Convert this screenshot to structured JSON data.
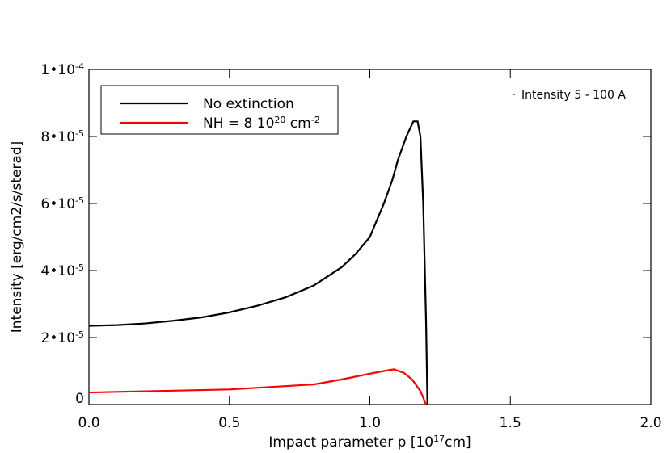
{
  "chart_data": {
    "type": "line",
    "xlabel": [
      {
        "text": "Impact parameter p [10"
      },
      {
        "sup": "17"
      },
      {
        "text": "cm]"
      }
    ],
    "ylabel": "Intensity [erg/cm2/s/sterad]",
    "annotation": "Intensity 5 - 100 A",
    "xlim": [
      0,
      2
    ],
    "ylim": [
      0,
      0.0001
    ],
    "xticks": [
      {
        "value": 0,
        "label": "0.0"
      },
      0.5,
      {
        "value": 1,
        "label": "1.0"
      },
      1.5,
      {
        "value": 2,
        "label": "2.0"
      }
    ],
    "yticks": [
      0,
      {
        "value": 2e-05,
        "label": [
          {
            "text": "2•10"
          },
          {
            "sup": "-5"
          }
        ]
      },
      {
        "value": 4e-05,
        "label": [
          {
            "text": "4•10"
          },
          {
            "sup": "-5"
          }
        ]
      },
      {
        "value": 6e-05,
        "label": [
          {
            "text": "6•10"
          },
          {
            "sup": "-5"
          }
        ]
      },
      {
        "value": 8e-05,
        "label": [
          {
            "text": "8•10"
          },
          {
            "sup": "-5"
          }
        ]
      },
      {
        "value": 0.0001,
        "label": [
          {
            "text": "1•10"
          },
          {
            "sup": "-4"
          }
        ]
      }
    ],
    "legend": "upper left",
    "series": [
      {
        "name": "No extinction",
        "color": "#000000",
        "x": [
          0,
          0.1,
          0.2,
          0.3,
          0.4,
          0.5,
          0.6,
          0.7,
          0.8,
          0.9,
          0.95,
          1.0,
          1.05,
          1.08,
          1.1,
          1.13,
          1.155,
          1.17,
          1.18,
          1.19,
          1.2,
          1.205
        ],
        "values": [
          2.35e-05,
          2.37e-05,
          2.42e-05,
          2.5e-05,
          2.6e-05,
          2.75e-05,
          2.95e-05,
          3.2e-05,
          3.55e-05,
          4.1e-05,
          4.5e-05,
          5e-05,
          6e-05,
          6.7e-05,
          7.3e-05,
          8e-05,
          8.45e-05,
          8.45e-05,
          8e-05,
          6e-05,
          2.5e-05,
          0
        ]
      },
      {
        "name": [
          {
            "text": "NH =  8 10"
          },
          {
            "sup": "20"
          },
          {
            "text": " cm"
          },
          {
            "sup": "-2"
          }
        ],
        "color": "#ff0000",
        "x": [
          0,
          0.5,
          0.8,
          0.9,
          1.0,
          1.05,
          1.085,
          1.12,
          1.15,
          1.18,
          1.2
        ],
        "values": [
          3.6e-06,
          4.5e-06,
          6e-06,
          7.5e-06,
          9.2e-06,
          1e-05,
          1.05e-05,
          9.5e-06,
          7.5e-06,
          4e-06,
          0
        ]
      }
    ]
  }
}
